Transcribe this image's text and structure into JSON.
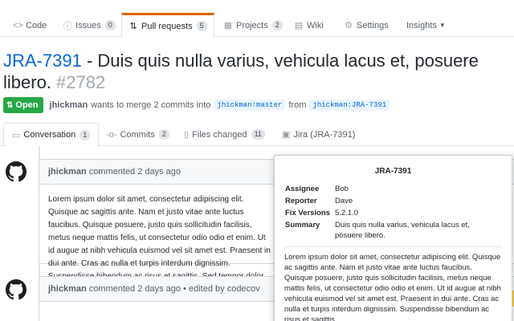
{
  "repo_nav": {
    "tabs": [
      {
        "label": "Code",
        "icon": "code-icon",
        "count": null
      },
      {
        "label": "Issues",
        "icon": "issue-icon",
        "count": "0"
      },
      {
        "label": "Pull requests",
        "icon": "pull-request-icon",
        "count": "5"
      },
      {
        "label": "Projects",
        "icon": "project-icon",
        "count": "2"
      },
      {
        "label": "Wiki",
        "icon": "book-icon",
        "count": null
      },
      {
        "label": "Settings",
        "icon": "gear-icon",
        "count": null
      },
      {
        "label": "Insights",
        "icon": "chevron-down-icon",
        "count": null
      }
    ]
  },
  "pr": {
    "key": "JRA-7391",
    "title_rest": " - Duis quis nulla varius, vehicula lacus et, posuere libero.",
    "number": "#2782",
    "state": "Open",
    "author": "jhickman",
    "merge_text": "wants to merge 2 commits into",
    "base_branch": "jhickman:master",
    "from_text": "from",
    "head_branch": "jhickman:JRA-7391"
  },
  "pr_tabs": [
    {
      "label": "Conversation",
      "icon": "comment-icon",
      "count": "1"
    },
    {
      "label": "Commits",
      "icon": "commit-icon",
      "count": "2"
    },
    {
      "label": "Files changed",
      "icon": "file-diff-icon",
      "count": "11"
    },
    {
      "label": "Jira (JRA-7391)",
      "icon": "jira-icon",
      "count": null
    }
  ],
  "comments": [
    {
      "author": "jhickman",
      "meta": "commented 2 days ago",
      "body": "Lorem ipsum dolor sit amet, consectetur adipiscing elit. Quisque ac sagittis ante. Nam et justo vitae ante luctus faucibus. Quisque posuere, justo quis sollicitudin facilisis, metus neque mattis felis, ut consectetur odio odio et enim. Ut id augue at nibh vehicula euismod vel sit amet est. Praesent in dui ante. Cras ac nulla et turpis interdum dignissim. Suspendisse bibendum ac risus et sagittis. Sed tempor dolor id ultrices feugiat. Mauris euismod rutrum ex, non sollicitudin odio luctus at."
    },
    {
      "author": "jhickman",
      "meta": "commented 2 days ago • edited by codecov"
    }
  ],
  "jira_popup": {
    "title": "JRA-7391",
    "fields": [
      {
        "label": "Assignee",
        "value": "Bob"
      },
      {
        "label": "Reporter",
        "value": "Dave"
      },
      {
        "label": "Fix Versions",
        "value": "5.2.1.0"
      },
      {
        "label": "Summary",
        "value": "Duis quis nulla varius, vehicula lacus et, posuere libero."
      }
    ],
    "description": "Lorem ipsum dolor sit amet, consectetur adipiscing elit. Quisque ac sagittis ante. Nam et justo vitae ante luctus faucibus. Quisque posuere, justo quis sollicitudin facilisis, metus neque mattis felis, ut consectetur odio odio et enim. Ut id augue at nibh vehicula euismod vel sit amet est. Praesent in dui ante. Cras ac nulla et turpis interdum dignissim. Suspendisse bibendum ac risus et sagittis."
  }
}
